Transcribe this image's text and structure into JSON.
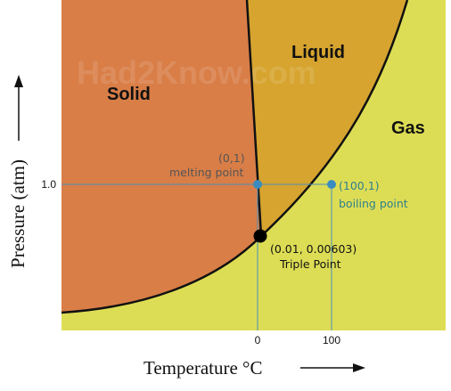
{
  "watermark": "Had2Know.com",
  "regions": {
    "solid": "Solid",
    "liquid": "Liquid",
    "gas": "Gas"
  },
  "annotations": {
    "melting_coord": "(0,1)",
    "melting_label": "melting point",
    "boiling_coord": "(100,1)",
    "boiling_label": "boiling point",
    "triple_coord": "(0.01, 0.00603)",
    "triple_label": "Triple Point"
  },
  "axes": {
    "x_title": "Temperature °C",
    "y_title": "Pressure (atm)",
    "x_ticks": [
      "0",
      "100"
    ],
    "y_ticks": [
      "1.0"
    ]
  },
  "colors": {
    "solid": "#d97e47",
    "liquid": "#d6a42f",
    "gas": "#dddd55",
    "guide_line": "#4a90b8",
    "marker_point": "#3a8cc0",
    "triple_point": "#000000"
  }
}
